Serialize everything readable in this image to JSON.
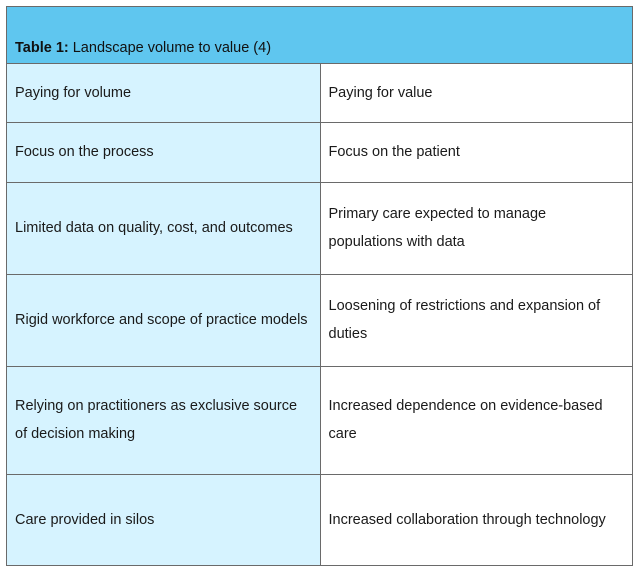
{
  "table": {
    "caption_label": "Table 1:",
    "caption_text": " Landscape volume to value (4)",
    "rows": [
      {
        "left": "Paying for volume",
        "right": "Paying for value"
      },
      {
        "left": "Focus on the process",
        "right": "Focus on the patient"
      },
      {
        "left": "Limited data on quality, cost, and outcomes",
        "right": "Primary care expected to manage populations with data"
      },
      {
        "left": "Rigid workforce and scope of practice models",
        "right": "Loosening of restrictions and expansion of duties"
      },
      {
        "left": "Relying on practitioners as exclusive source of decision making",
        "right": "Increased dependence on evidence-based care"
      },
      {
        "left": "Care provided in silos",
        "right": "Increased collaboration through technology"
      }
    ],
    "colors": {
      "header_bg": "#5fc6ef",
      "left_column_bg": "#d6f3ff",
      "right_column_bg": "#ffffff",
      "border": "#6a6a6a"
    }
  }
}
